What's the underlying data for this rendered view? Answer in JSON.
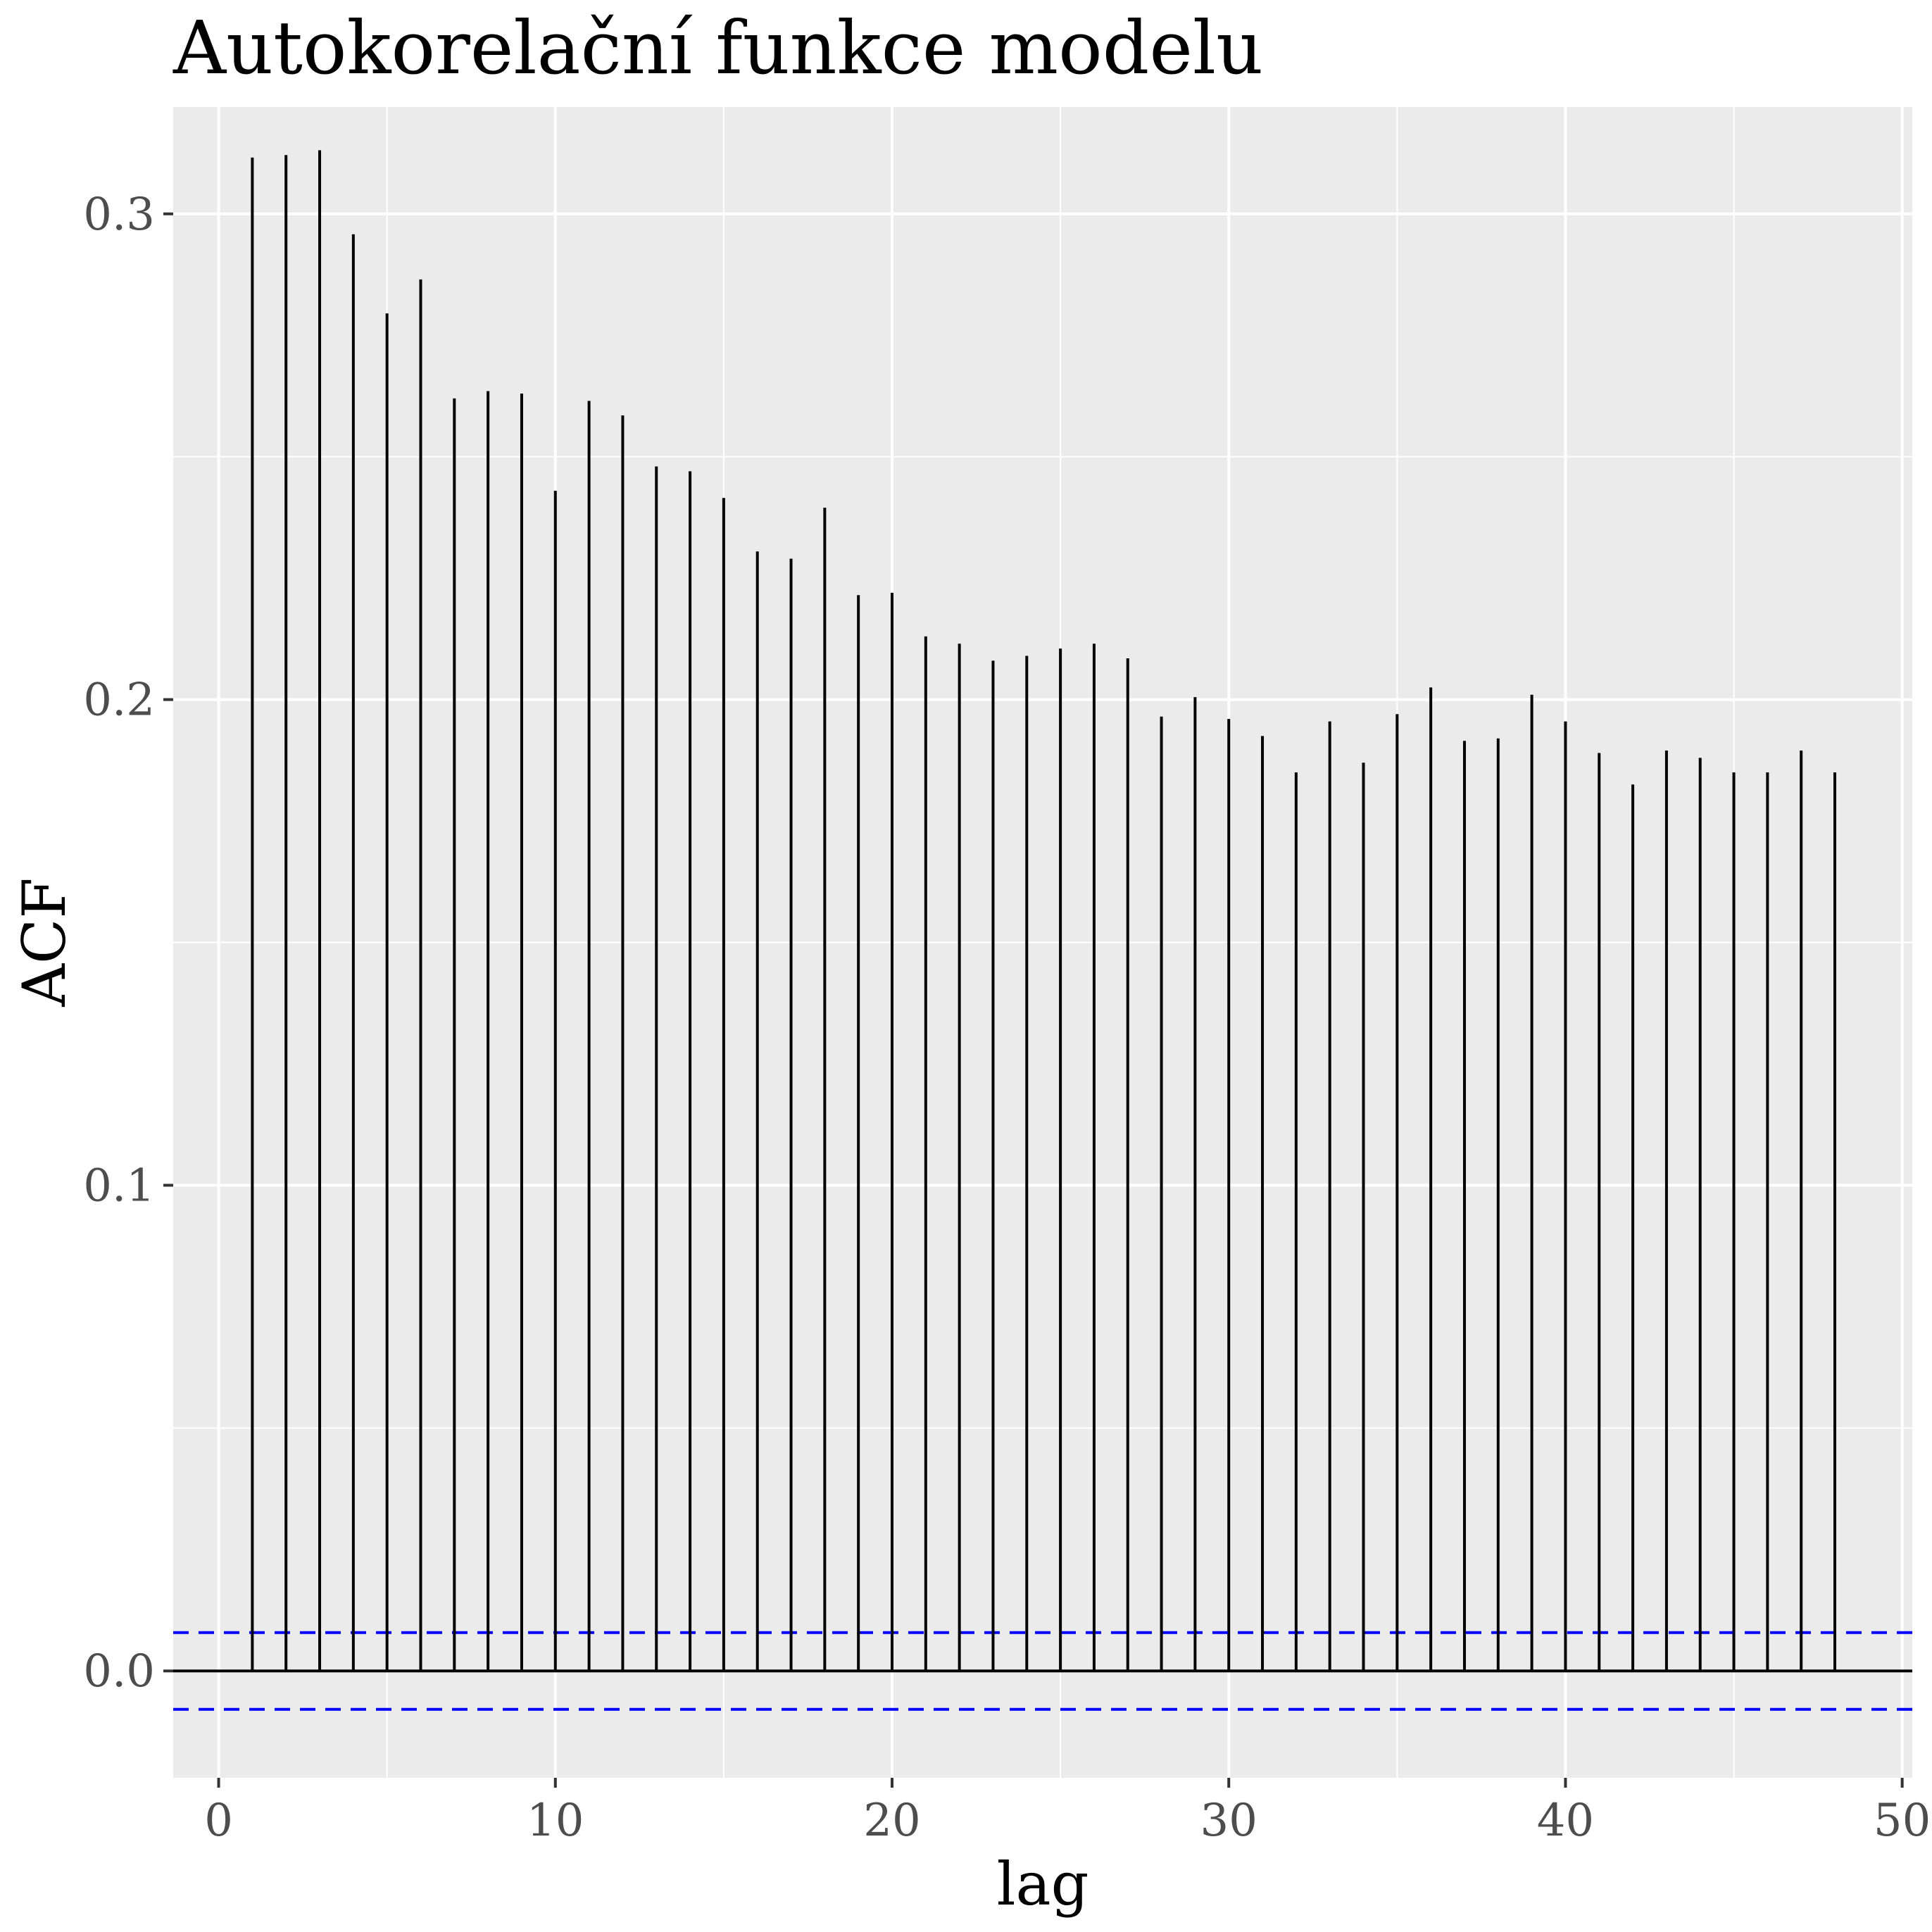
{
  "chart_data": {
    "type": "bar",
    "title": "Autokorelační funkce modelu",
    "xlabel": "lag",
    "ylabel": "ACF",
    "xlim": [
      -1.35,
      50.3
    ],
    "ylim": [
      -0.022,
      0.322
    ],
    "x_ticks": [
      0,
      10,
      20,
      30,
      40,
      50
    ],
    "x_tick_labels": [
      "0",
      "10",
      "20",
      "30",
      "40",
      "50"
    ],
    "y_ticks": [
      0.0,
      0.1,
      0.2,
      0.3
    ],
    "y_tick_labels": [
      "0.0",
      "0.1",
      "0.2",
      "0.3"
    ],
    "grid": true,
    "zero_line": true,
    "confidence_band": {
      "upper": 0.0079,
      "lower": -0.0079,
      "color": "#0000ff",
      "style": "dashed"
    },
    "colors": {
      "panel_background": "#ebebeb",
      "grid": "#ffffff",
      "bars": "#000000"
    },
    "lags": [
      1,
      2,
      3,
      4,
      5,
      6,
      7,
      8,
      9,
      10,
      11,
      12,
      13,
      14,
      15,
      16,
      17,
      18,
      19,
      20,
      21,
      22,
      23,
      24,
      25,
      26,
      27,
      28,
      29,
      30,
      31,
      32,
      33,
      34,
      35,
      36,
      37,
      38,
      39,
      40,
      41,
      42,
      43,
      44,
      45,
      46,
      47,
      48
    ],
    "values": [
      0.3116,
      0.3121,
      0.3131,
      0.2958,
      0.2795,
      0.2865,
      0.262,
      0.2635,
      0.263,
      0.243,
      0.2615,
      0.2585,
      0.248,
      0.247,
      0.2415,
      0.2305,
      0.229,
      0.2395,
      0.2215,
      0.222,
      0.213,
      0.2115,
      0.208,
      0.209,
      0.2105,
      0.2115,
      0.2085,
      0.1965,
      0.2005,
      0.196,
      0.1925,
      0.185,
      0.1955,
      0.187,
      0.197,
      0.2025,
      0.1915,
      0.192,
      0.201,
      0.1955,
      0.189,
      0.1825,
      0.1895,
      0.188,
      0.185,
      0.185,
      0.1895,
      0.185
    ]
  }
}
